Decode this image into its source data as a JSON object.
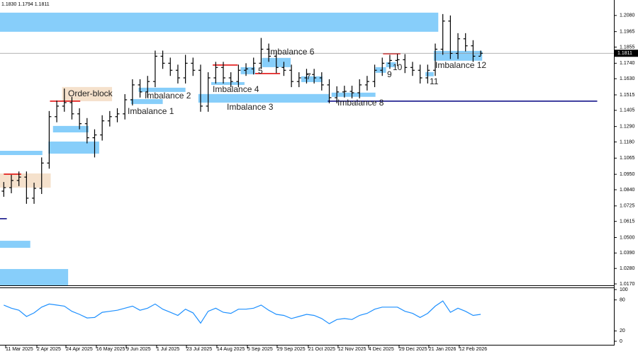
{
  "chart_data": [
    {
      "type": "candlestick",
      "header": "1.1830 1.1794 1.1811",
      "open": [
        1.083,
        1.0855,
        1.0906,
        1.093,
        1.078,
        1.085,
        1.103,
        1.136,
        1.1435,
        1.146,
        1.138,
        1.131,
        1.121,
        1.123,
        1.133,
        1.136,
        1.138,
        1.148,
        1.1586,
        1.1536,
        1.161,
        1.179,
        1.174,
        1.169,
        1.1636,
        1.174,
        1.169,
        1.1435,
        1.1636,
        1.171,
        1.1636,
        1.161,
        1.169,
        1.17,
        1.174,
        1.184,
        1.179,
        1.171,
        1.169,
        1.161,
        1.1636,
        1.166,
        1.1636,
        1.1586,
        1.1495,
        1.1536,
        1.154,
        1.153,
        1.1586,
        1.161,
        1.169,
        1.174,
        1.176,
        1.1765,
        1.171,
        1.169,
        1.1636,
        1.169,
        1.184,
        1.204,
        1.181,
        1.1914,
        1.1864,
        1.179
      ],
      "high": [
        1.0895,
        1.0946,
        1.097,
        1.097,
        1.089,
        1.107,
        1.14,
        1.1475,
        1.156,
        1.15,
        1.142,
        1.135,
        1.127,
        1.137,
        1.14,
        1.142,
        1.152,
        1.1626,
        1.1626,
        1.165,
        1.183,
        1.183,
        1.178,
        1.173,
        1.18,
        1.178,
        1.173,
        1.1676,
        1.175,
        1.175,
        1.1676,
        1.173,
        1.174,
        1.178,
        1.192,
        1.188,
        1.183,
        1.175,
        1.173,
        1.1676,
        1.17,
        1.17,
        1.1676,
        1.1626,
        1.1576,
        1.158,
        1.158,
        1.1626,
        1.165,
        1.173,
        1.178,
        1.18,
        1.1805,
        1.1805,
        1.175,
        1.173,
        1.173,
        1.188,
        1.209,
        1.208,
        1.1954,
        1.1954,
        1.1904,
        1.183
      ],
      "low": [
        1.079,
        1.0815,
        1.0866,
        1.074,
        1.074,
        1.081,
        1.099,
        1.132,
        1.1395,
        1.134,
        1.127,
        1.117,
        1.107,
        1.119,
        1.129,
        1.132,
        1.134,
        1.144,
        1.1496,
        1.1496,
        1.157,
        1.17,
        1.165,
        1.1596,
        1.1596,
        1.165,
        1.1395,
        1.1395,
        1.1596,
        1.1596,
        1.157,
        1.157,
        1.165,
        1.166,
        1.17,
        1.175,
        1.167,
        1.165,
        1.157,
        1.157,
        1.1596,
        1.1596,
        1.1546,
        1.1455,
        1.1455,
        1.1496,
        1.149,
        1.149,
        1.1546,
        1.157,
        1.165,
        1.17,
        1.172,
        1.167,
        1.165,
        1.1596,
        1.1596,
        1.165,
        1.18,
        1.177,
        1.177,
        1.1824,
        1.175,
        1.1794
      ],
      "close": [
        1.0855,
        1.0906,
        1.093,
        1.078,
        1.085,
        1.103,
        1.136,
        1.1435,
        1.146,
        1.138,
        1.131,
        1.121,
        1.123,
        1.133,
        1.136,
        1.138,
        1.148,
        1.1586,
        1.1536,
        1.161,
        1.179,
        1.174,
        1.169,
        1.1636,
        1.174,
        1.169,
        1.1435,
        1.1636,
        1.171,
        1.1636,
        1.161,
        1.169,
        1.17,
        1.174,
        1.184,
        1.179,
        1.171,
        1.169,
        1.161,
        1.1636,
        1.166,
        1.1636,
        1.1586,
        1.1495,
        1.1536,
        1.154,
        1.153,
        1.1586,
        1.161,
        1.169,
        1.174,
        1.176,
        1.1765,
        1.171,
        1.169,
        1.1636,
        1.169,
        1.184,
        1.204,
        1.181,
        1.1914,
        1.1864,
        1.179,
        1.1811
      ],
      "color": "#000000",
      "xlim": [
        -0.5,
        80.6
      ],
      "ylim": [
        1.016,
        1.219
      ],
      "yticks": [
        {
          "value": 1.208,
          "label": "1.2080"
        },
        {
          "value": 1.1965,
          "label": "1.1965"
        },
        {
          "value": 1.1855,
          "label": "1.1855"
        },
        {
          "value": 1.174,
          "label": "1.1740"
        },
        {
          "value": 1.163,
          "label": "1.1630"
        },
        {
          "value": 1.1515,
          "label": "1.1515"
        },
        {
          "value": 1.1405,
          "label": "1.1405"
        },
        {
          "value": 1.129,
          "label": "1.1290"
        },
        {
          "value": 1.118,
          "label": "1.1180"
        },
        {
          "value": 1.1065,
          "label": "1.1065"
        },
        {
          "value": 1.095,
          "label": "1.0950"
        },
        {
          "value": 1.084,
          "label": "1.0840"
        },
        {
          "value": 1.0725,
          "label": "1.0725"
        },
        {
          "value": 1.0615,
          "label": "1.0615"
        },
        {
          "value": 1.05,
          "label": "1.0500"
        },
        {
          "value": 1.039,
          "label": "1.0390"
        },
        {
          "value": 1.028,
          "label": "1.0280"
        },
        {
          "value": 1.017,
          "label": "1.0170"
        }
      ],
      "xticks": [
        {
          "value": 0.25,
          "label": "11 Mar 2025"
        },
        {
          "value": 4.37,
          "label": "2 Apr 2025"
        },
        {
          "value": 8.21,
          "label": "24 Apr 2025"
        },
        {
          "value": 12.23,
          "label": "16 May 2025"
        },
        {
          "value": 16.17,
          "label": "9 Jun 2025"
        },
        {
          "value": 20.19,
          "label": "1 Jul 2025"
        },
        {
          "value": 24.13,
          "label": "23 Jul 2025"
        },
        {
          "value": 28.15,
          "label": "14 Aug 2025"
        },
        {
          "value": 32.18,
          "label": "5 Sep 2025"
        },
        {
          "value": 36.11,
          "label": "29 Sep 2025"
        },
        {
          "value": 40.23,
          "label": "21 Oct 2025"
        },
        {
          "value": 44.16,
          "label": "12 Nov 2025"
        },
        {
          "value": 48.19,
          "label": "4 Dec 2025"
        },
        {
          "value": 52.22,
          "label": "29 Dec 2025"
        },
        {
          "value": 56.15,
          "label": "21 Jan 2026"
        },
        {
          "value": 60.17,
          "label": "12 Feb 2026"
        }
      ],
      "last_price": {
        "value": 1.1811,
        "label": "1.1811"
      },
      "zones": [
        {
          "x": [
            -0.5,
            57.4
          ],
          "y": [
            1.1964,
            1.21
          ],
          "color": "#87cefa"
        },
        {
          "x": [
            -0.5,
            5.1
          ],
          "y": [
            1.1087,
            1.1117
          ],
          "color": "#87cefa"
        },
        {
          "x": [
            5.9,
            12.6
          ],
          "y": [
            1.1097,
            1.1183
          ],
          "color": "#87cefa"
        },
        {
          "x": [
            6.5,
            11.2
          ],
          "y": [
            1.1248,
            1.1294
          ],
          "color": "#87cefa"
        },
        {
          "x": [
            -0.5,
            3.5
          ],
          "y": [
            1.0427,
            1.0477
          ],
          "color": "#87cefa"
        },
        {
          "x": [
            -0.5,
            8.5
          ],
          "y": [
            1.016,
            1.0276
          ],
          "color": "#87cefa"
        },
        {
          "x": [
            16.8,
            21.0
          ],
          "y": [
            1.145,
            1.1485
          ],
          "color": "#87cefa",
          "label": "Imbalance 1"
        },
        {
          "x": [
            17.8,
            24.0
          ],
          "y": [
            1.1536,
            1.1566
          ],
          "color": "#87cefa",
          "label": "Imbalance 2"
        },
        {
          "x": [
            25.7,
            43.0
          ],
          "y": [
            1.146,
            1.1521
          ],
          "color": "#87cefa",
          "label": "Imbalance 3"
        },
        {
          "x": [
            27.4,
            31.8
          ],
          "y": [
            1.1586,
            1.1606
          ],
          "color": "#87cefa",
          "label": "Imbalance 4"
        },
        {
          "x": [
            31.3,
            33.2
          ],
          "y": [
            1.1662,
            1.1712
          ],
          "color": "#87cefa",
          "label": "5"
        },
        {
          "x": [
            34.1,
            37.9
          ],
          "y": [
            1.1712,
            1.1778
          ],
          "color": "#87cefa",
          "label": "Imbalance 6"
        },
        {
          "x": [
            39.3,
            42.1
          ],
          "y": [
            1.1606,
            1.1647
          ],
          "color": "#87cefa",
          "label": "7"
        },
        {
          "x": [
            43.3,
            49.1
          ],
          "y": [
            1.1501,
            1.1531
          ],
          "color": "#87cefa",
          "label": "Imbalance 8"
        },
        {
          "x": [
            49.1,
            50.5
          ],
          "y": [
            1.1672,
            1.1712
          ],
          "color": "#87cefa",
          "label": "9"
        },
        {
          "x": [
            50.5,
            51.8
          ],
          "y": [
            1.1712,
            1.1747
          ],
          "color": "#87cefa",
          "label": "10"
        },
        {
          "x": [
            55.7,
            56.8
          ],
          "y": [
            1.1647,
            1.1677
          ],
          "color": "#87cefa",
          "label": "11"
        },
        {
          "x": [
            56.8,
            63.2
          ],
          "y": [
            1.1758,
            1.1828
          ],
          "color": "#87cefa",
          "label": "Imbalance 12"
        },
        {
          "x": [
            7.7,
            14.3
          ],
          "y": [
            1.147,
            1.1571
          ],
          "color": "#f5e1cc",
          "label": "Order-block"
        },
        {
          "x": [
            -0.5,
            6.2
          ],
          "y": [
            1.0855,
            1.0956
          ],
          "color": "#f5e1cc"
        }
      ],
      "levels": [
        {
          "x": [
            6.1,
            10.1
          ],
          "y": 1.147,
          "color": "#e00000"
        },
        {
          "x": [
            0.0,
            2.3
          ],
          "y": 1.0951,
          "color": "#e00000"
        },
        {
          "x": [
            27.6,
            30.9
          ],
          "y": 1.1727,
          "color": "#e00000"
        },
        {
          "x": [
            33.2,
            36.5
          ],
          "y": 1.1667,
          "color": "#e00000"
        },
        {
          "x": [
            50.1,
            52.4
          ],
          "y": 1.1808,
          "color": "#e00000"
        },
        {
          "x": [
            42.8,
            78.4
          ],
          "y": 1.147,
          "color": "#000080"
        },
        {
          "x": [
            -0.5,
            0.4
          ],
          "y": 1.0634,
          "color": "#000080"
        }
      ]
    },
    {
      "type": "line",
      "values": [
        70,
        64,
        60,
        48,
        55,
        66,
        72,
        70,
        68,
        58,
        52,
        45,
        46,
        56,
        58,
        60,
        64,
        68,
        60,
        64,
        72,
        62,
        56,
        50,
        62,
        55,
        35,
        58,
        64,
        56,
        54,
        62,
        62,
        64,
        70,
        60,
        52,
        50,
        44,
        48,
        52,
        50,
        44,
        34,
        42,
        44,
        42,
        50,
        54,
        62,
        66,
        66,
        66,
        58,
        54,
        46,
        54,
        68,
        78,
        56,
        64,
        58,
        50,
        52
      ],
      "color": "#1e90ff",
      "ylim": [
        0,
        100
      ],
      "yticks": [
        100,
        80,
        20,
        0
      ]
    }
  ]
}
